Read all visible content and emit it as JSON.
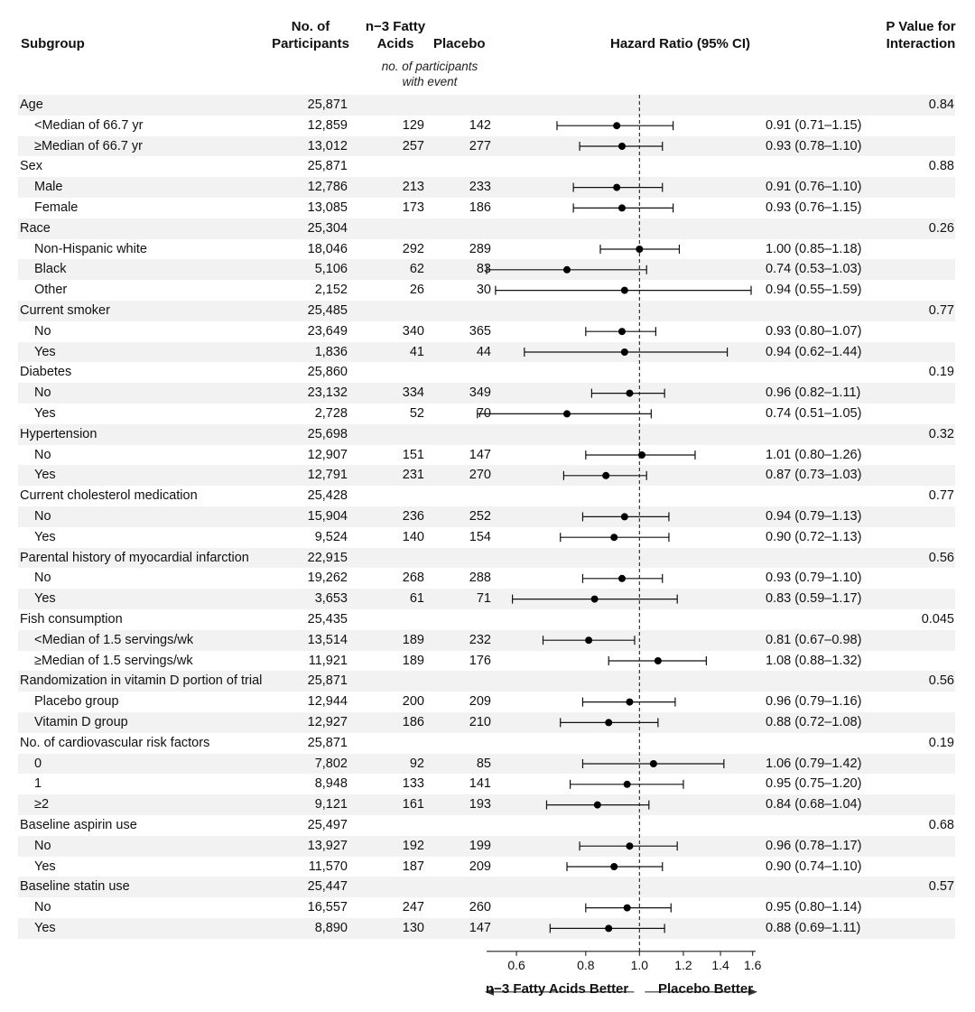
{
  "headers": {
    "subgroup": "Subgroup",
    "participants_1": "No. of",
    "participants_2": "Participants",
    "fatty_1": "n−3 Fatty",
    "fatty_2": "Acids",
    "placebo": "Placebo",
    "events_sub_1": "no. of participants",
    "events_sub_2": "with event",
    "hr": "Hazard Ratio (95% CI)",
    "pvalue_1": "P Value for",
    "pvalue_2": "Interaction"
  },
  "xlabels": {
    "left": "n−3 Fatty Acids Better",
    "right": "Placebo Better"
  },
  "chart_data": {
    "type": "forest",
    "x_scale": "log",
    "xlim": [
      0.53,
      1.62
    ],
    "reference_line": 1.0,
    "x_ticks": [
      0.6,
      0.8,
      1.0,
      1.2,
      1.4,
      1.6
    ],
    "x_tick_labels": [
      "0.6",
      "0.8",
      "1.0",
      "1.2",
      "1.4",
      "1.6"
    ],
    "rows": [
      {
        "label": "Age",
        "group": true,
        "n": "25,871",
        "p": "0.84"
      },
      {
        "label": "<Median of 66.7 yr",
        "n": "12,859",
        "fa": "129",
        "pl": "142",
        "hr": 0.91,
        "lo": 0.71,
        "hi": 1.15,
        "text": "0.91 (0.71–1.15)"
      },
      {
        "label": "≥Median of 66.7 yr",
        "n": "13,012",
        "fa": "257",
        "pl": "277",
        "hr": 0.93,
        "lo": 0.78,
        "hi": 1.1,
        "text": "0.93 (0.78–1.10)"
      },
      {
        "label": "Sex",
        "group": true,
        "n": "25,871",
        "p": "0.88"
      },
      {
        "label": "Male",
        "n": "12,786",
        "fa": "213",
        "pl": "233",
        "hr": 0.91,
        "lo": 0.76,
        "hi": 1.1,
        "text": "0.91 (0.76–1.10)"
      },
      {
        "label": "Female",
        "n": "13,085",
        "fa": "173",
        "pl": "186",
        "hr": 0.93,
        "lo": 0.76,
        "hi": 1.15,
        "text": "0.93 (0.76–1.15)"
      },
      {
        "label": "Race",
        "group": true,
        "n": "25,304",
        "p": "0.26"
      },
      {
        "label": "Non-Hispanic white",
        "n": "18,046",
        "fa": "292",
        "pl": "289",
        "hr": 1.0,
        "lo": 0.85,
        "hi": 1.18,
        "text": "1.00 (0.85–1.18)"
      },
      {
        "label": "Black",
        "n": "5,106",
        "fa": "62",
        "pl": "83",
        "hr": 0.74,
        "lo": 0.53,
        "hi": 1.03,
        "text": "0.74 (0.53–1.03)"
      },
      {
        "label": "Other",
        "n": "2,152",
        "fa": "26",
        "pl": "30",
        "hr": 0.94,
        "lo": 0.55,
        "hi": 1.59,
        "text": "0.94 (0.55–1.59)"
      },
      {
        "label": "Current smoker",
        "group": true,
        "n": "25,485",
        "p": "0.77"
      },
      {
        "label": "No",
        "n": "23,649",
        "fa": "340",
        "pl": "365",
        "hr": 0.93,
        "lo": 0.8,
        "hi": 1.07,
        "text": "0.93 (0.80–1.07)"
      },
      {
        "label": "Yes",
        "n": "1,836",
        "fa": "41",
        "pl": "44",
        "hr": 0.94,
        "lo": 0.62,
        "hi": 1.44,
        "text": "0.94 (0.62–1.44)"
      },
      {
        "label": "Diabetes",
        "group": true,
        "n": "25,860",
        "p": "0.19"
      },
      {
        "label": "No",
        "n": "23,132",
        "fa": "334",
        "pl": "349",
        "hr": 0.96,
        "lo": 0.82,
        "hi": 1.11,
        "text": "0.96 (0.82–1.11)"
      },
      {
        "label": "Yes",
        "n": "2,728",
        "fa": "52",
        "pl": "70",
        "hr": 0.74,
        "lo": 0.51,
        "hi": 1.05,
        "text": "0.74 (0.51–1.05)"
      },
      {
        "label": "Hypertension",
        "group": true,
        "n": "25,698",
        "p": "0.32"
      },
      {
        "label": "No",
        "n": "12,907",
        "fa": "151",
        "pl": "147",
        "hr": 1.01,
        "lo": 0.8,
        "hi": 1.26,
        "text": "1.01 (0.80–1.26)"
      },
      {
        "label": "Yes",
        "n": "12,791",
        "fa": "231",
        "pl": "270",
        "hr": 0.87,
        "lo": 0.73,
        "hi": 1.03,
        "text": "0.87 (0.73–1.03)"
      },
      {
        "label": "Current cholesterol medication",
        "group": true,
        "n": "25,428",
        "p": "0.77"
      },
      {
        "label": "No",
        "n": "15,904",
        "fa": "236",
        "pl": "252",
        "hr": 0.94,
        "lo": 0.79,
        "hi": 1.13,
        "text": "0.94 (0.79–1.13)"
      },
      {
        "label": "Yes",
        "n": "9,524",
        "fa": "140",
        "pl": "154",
        "hr": 0.9,
        "lo": 0.72,
        "hi": 1.13,
        "text": "0.90 (0.72–1.13)"
      },
      {
        "label": "Parental history of myocardial infarction",
        "group": true,
        "n": "22,915",
        "p": "0.56"
      },
      {
        "label": "No",
        "n": "19,262",
        "fa": "268",
        "pl": "288",
        "hr": 0.93,
        "lo": 0.79,
        "hi": 1.1,
        "text": "0.93 (0.79–1.10)"
      },
      {
        "label": "Yes",
        "n": "3,653",
        "fa": "61",
        "pl": "71",
        "hr": 0.83,
        "lo": 0.59,
        "hi": 1.17,
        "text": "0.83 (0.59–1.17)"
      },
      {
        "label": "Fish consumption",
        "group": true,
        "n": "25,435",
        "p": "0.045"
      },
      {
        "label": "<Median of 1.5 servings/wk",
        "n": "13,514",
        "fa": "189",
        "pl": "232",
        "hr": 0.81,
        "lo": 0.67,
        "hi": 0.98,
        "text": "0.81 (0.67–0.98)"
      },
      {
        "label": "≥Median of 1.5 servings/wk",
        "n": "11,921",
        "fa": "189",
        "pl": "176",
        "hr": 1.08,
        "lo": 0.88,
        "hi": 1.32,
        "text": "1.08 (0.88–1.32)"
      },
      {
        "label": "Randomization in vitamin D portion of trial",
        "group": true,
        "n": "25,871",
        "p": "0.56"
      },
      {
        "label": "Placebo group",
        "n": "12,944",
        "fa": "200",
        "pl": "209",
        "hr": 0.96,
        "lo": 0.79,
        "hi": 1.16,
        "text": "0.96 (0.79–1.16)"
      },
      {
        "label": "Vitamin D group",
        "n": "12,927",
        "fa": "186",
        "pl": "210",
        "hr": 0.88,
        "lo": 0.72,
        "hi": 1.08,
        "text": "0.88 (0.72–1.08)"
      },
      {
        "label": "No. of cardiovascular risk factors",
        "group": true,
        "n": "25,871",
        "p": "0.19"
      },
      {
        "label": "0",
        "n": "7,802",
        "fa": "92",
        "pl": "85",
        "hr": 1.06,
        "lo": 0.79,
        "hi": 1.42,
        "text": "1.06 (0.79–1.42)"
      },
      {
        "label": "1",
        "n": "8,948",
        "fa": "133",
        "pl": "141",
        "hr": 0.95,
        "lo": 0.75,
        "hi": 1.2,
        "text": "0.95 (0.75–1.20)"
      },
      {
        "label": "≥2",
        "n": "9,121",
        "fa": "161",
        "pl": "193",
        "hr": 0.84,
        "lo": 0.68,
        "hi": 1.04,
        "text": "0.84 (0.68–1.04)"
      },
      {
        "label": "Baseline aspirin use",
        "group": true,
        "n": "25,497",
        "p": "0.68"
      },
      {
        "label": "No",
        "n": "13,927",
        "fa": "192",
        "pl": "199",
        "hr": 0.96,
        "lo": 0.78,
        "hi": 1.17,
        "text": "0.96 (0.78–1.17)"
      },
      {
        "label": "Yes",
        "n": "11,570",
        "fa": "187",
        "pl": "209",
        "hr": 0.9,
        "lo": 0.74,
        "hi": 1.1,
        "text": "0.90 (0.74–1.10)"
      },
      {
        "label": "Baseline statin use",
        "group": true,
        "n": "25,447",
        "p": "0.57"
      },
      {
        "label": "No",
        "n": "16,557",
        "fa": "247",
        "pl": "260",
        "hr": 0.95,
        "lo": 0.8,
        "hi": 1.14,
        "text": "0.95 (0.80–1.14)"
      },
      {
        "label": "Yes",
        "n": "8,890",
        "fa": "130",
        "pl": "147",
        "hr": 0.88,
        "lo": 0.69,
        "hi": 1.11,
        "text": "0.88 (0.69–1.11)"
      }
    ]
  }
}
